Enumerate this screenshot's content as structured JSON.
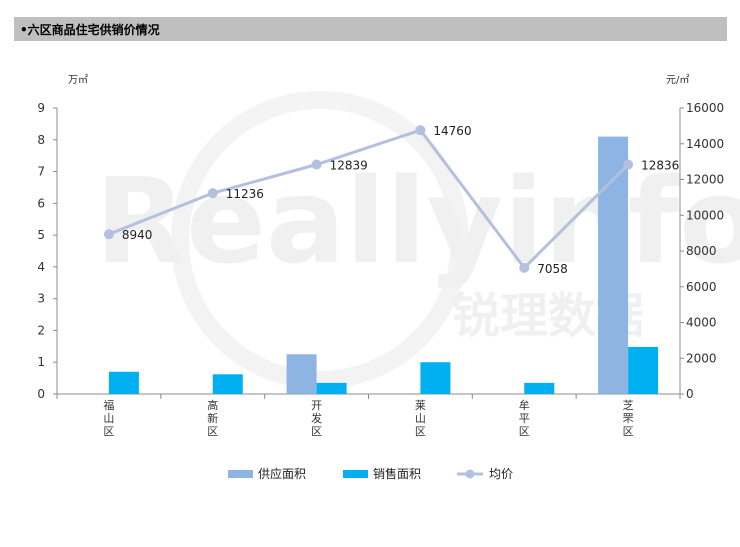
{
  "header": {
    "title": "•六区商品住宅供销价情况"
  },
  "watermark": {
    "brand": "Reallyinfo",
    "cn": "锐理数据"
  },
  "chart_data": {
    "type": "bar",
    "categories": [
      "福山区",
      "高新区",
      "开发区",
      "莱山区",
      "牟平区",
      "芝罘区"
    ],
    "y_left_unit": "万㎡",
    "y_right_unit": "元/㎡",
    "ylim_left": [
      0,
      9
    ],
    "ylim_right": [
      0,
      16000
    ],
    "left_ticks": [
      0,
      1,
      2,
      3,
      4,
      5,
      6,
      7,
      8,
      9
    ],
    "right_ticks": [
      0,
      2000,
      4000,
      6000,
      8000,
      10000,
      12000,
      14000,
      16000
    ],
    "series": [
      {
        "name": "供应面积",
        "type": "bar",
        "axis": "left",
        "color": "#8eb4e3",
        "values": [
          0,
          0,
          1.25,
          0,
          0,
          8.1
        ]
      },
      {
        "name": "销售面积",
        "type": "bar",
        "axis": "left",
        "color": "#00b0f0",
        "values": [
          0.7,
          0.62,
          0.35,
          1.0,
          0.35,
          1.48
        ]
      },
      {
        "name": "均价",
        "type": "line",
        "axis": "right",
        "color": "#b4c0de",
        "values": [
          8940,
          11236,
          12839,
          14760,
          7058,
          12836
        ],
        "labels": [
          "8940",
          "11236",
          "12839",
          "14760",
          "7058",
          "12836"
        ]
      }
    ],
    "grid": false,
    "legend_position": "bottom"
  }
}
